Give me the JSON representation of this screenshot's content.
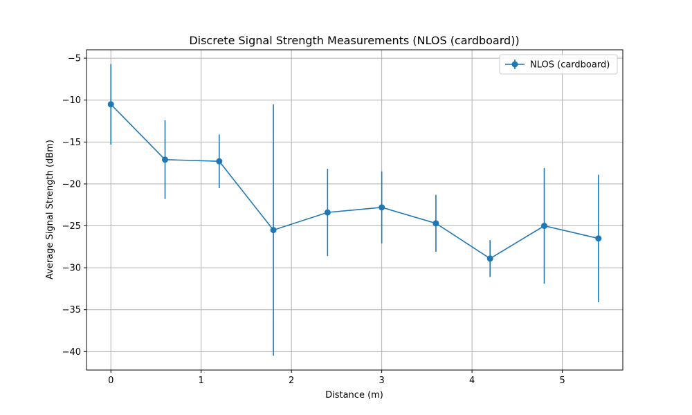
{
  "chart_data": {
    "type": "line",
    "title": "Discrete Signal Strength Measurements (NLOS (cardboard))",
    "xlabel": "Distance (m)",
    "ylabel": "Average Signal Strength (dBm)",
    "xlim": [
      -0.27,
      5.67
    ],
    "ylim": [
      -42.2,
      -4.0
    ],
    "x_ticks": [
      0,
      1,
      2,
      3,
      4,
      5
    ],
    "y_ticks": [
      -40,
      -35,
      -30,
      -25,
      -20,
      -15,
      -10,
      -5
    ],
    "x_tick_labels": [
      "0",
      "1",
      "2",
      "3",
      "4",
      "5"
    ],
    "y_tick_labels": [
      "−40",
      "−35",
      "−30",
      "−25",
      "−20",
      "−15",
      "−10",
      "−5"
    ],
    "grid": true,
    "legend": {
      "position": "top-right",
      "entries": [
        "NLOS (cardboard)"
      ]
    },
    "series": [
      {
        "name": "NLOS (cardboard)",
        "color": "#1f77b4",
        "marker": "circle",
        "error_bars": true,
        "points": [
          {
            "x": 0.0,
            "y": -10.5,
            "err": 4.8
          },
          {
            "x": 0.6,
            "y": -17.1,
            "err": 4.7
          },
          {
            "x": 1.2,
            "y": -17.3,
            "err": 3.2
          },
          {
            "x": 1.8,
            "y": -25.5,
            "err": 15.0
          },
          {
            "x": 2.4,
            "y": -23.4,
            "err": 5.2
          },
          {
            "x": 3.0,
            "y": -22.8,
            "err": 4.3
          },
          {
            "x": 3.6,
            "y": -24.7,
            "err": 3.4
          },
          {
            "x": 4.2,
            "y": -28.9,
            "err": 2.2
          },
          {
            "x": 4.8,
            "y": -25.0,
            "err": 6.9
          },
          {
            "x": 5.4,
            "y": -26.5,
            "err": 7.6
          }
        ]
      }
    ]
  }
}
